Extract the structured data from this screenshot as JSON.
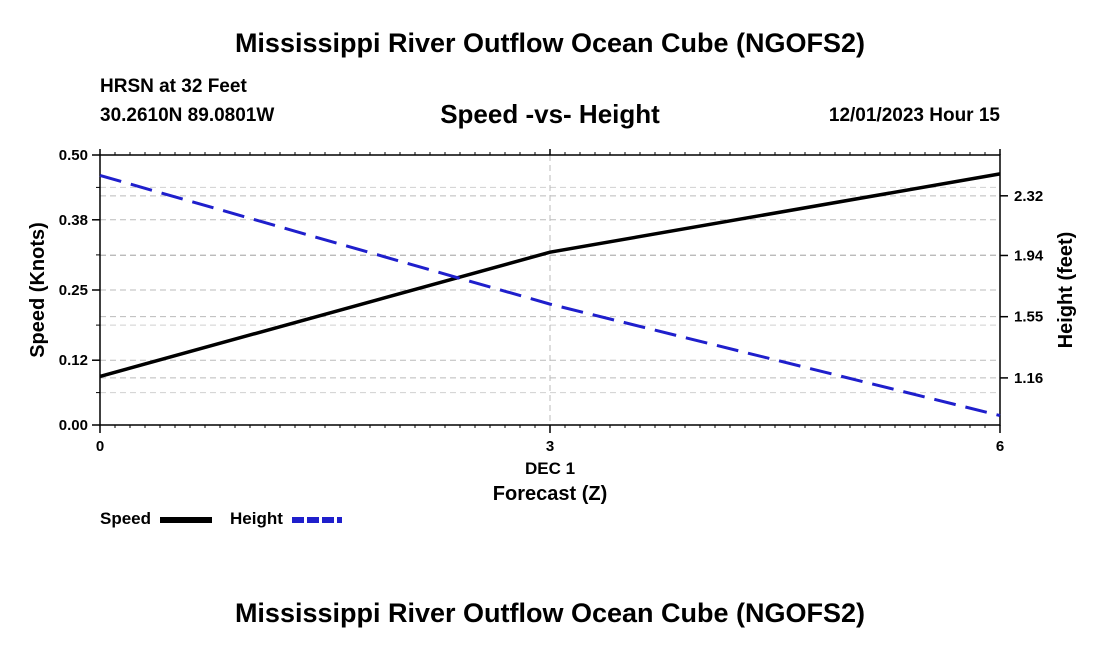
{
  "page": {
    "title": "Mississippi River Outflow Ocean Cube (NGOFS2)",
    "station": "HRSN at 32 Feet",
    "coords": "30.2610N  89.0801W",
    "subtitle": "Speed -vs- Height",
    "datetime": "12/01/2023 Hour 15",
    "bottom_title": "Mississippi River Outflow Ocean Cube (NGOFS2)"
  },
  "chart_data": {
    "type": "line",
    "title": "Speed -vs- Height",
    "xlabel": "Forecast (Z)",
    "x_date_label": "DEC 1",
    "ylabel_left": "Speed (Knots)",
    "ylabel_right": "Height (feet)",
    "xlim": [
      0,
      6
    ],
    "ylim_left": [
      0.0,
      0.5
    ],
    "ylim_right": [
      0.86,
      2.58
    ],
    "x_ticks": [
      "0",
      "3",
      "6"
    ],
    "y_ticks_left": [
      "0.00",
      "0.12",
      "0.25",
      "0.38",
      "0.50"
    ],
    "y_ticks_right": [
      "1.16",
      "1.55",
      "1.94",
      "2.32"
    ],
    "grid": true,
    "legend_position": "bottom-left",
    "series": [
      {
        "name": "Speed",
        "axis": "left",
        "color": "#000000",
        "style": "solid",
        "x": [
          0,
          3,
          6
        ],
        "values": [
          0.09,
          0.32,
          0.465
        ]
      },
      {
        "name": "Height",
        "axis": "right",
        "color": "#1f1fcc",
        "style": "dashed",
        "x": [
          0,
          3,
          6
        ],
        "values": [
          2.45,
          1.63,
          0.92
        ]
      }
    ]
  }
}
